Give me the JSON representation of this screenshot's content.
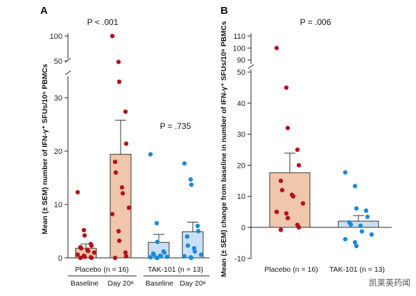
{
  "colors": {
    "placebo_bar": "#f0c6ad",
    "tak_bar": "#c9e0f6",
    "placebo_dot": "#b5121b",
    "tak_dot": "#1c8ad8"
  },
  "watermark": "凯莱英药闻",
  "chart_data": [
    {
      "panel": "A",
      "type": "bar",
      "ylabel": "Mean (± SEM) number of IFN-γ⁺ SFUs/10⁶ PBMCs",
      "ylim": [
        0,
        100
      ],
      "axis_break": [
        37,
        47
      ],
      "yticks": [
        0,
        10,
        20,
        30,
        50,
        100
      ],
      "groups": [
        {
          "name": "Placebo (n = 16)",
          "subcategories": [
            "Baseline",
            "Day 20ᵃ"
          ]
        },
        {
          "name": "TAK-101 (n = 13)",
          "subcategories": [
            "Baseline",
            "Day 20ᵃ"
          ]
        }
      ],
      "series": [
        {
          "name": "Placebo Baseline",
          "mean": 1.8,
          "sem": 0.8,
          "points": [
            12.3,
            5.2,
            4.2,
            2.6,
            2.3,
            2.0,
            1.8,
            1.5,
            1.3,
            1.0,
            0.6,
            0.4,
            0.2,
            0.1,
            0.0,
            0.0
          ]
        },
        {
          "name": "Placebo Day 20",
          "mean": 19.4,
          "sem": 6.4,
          "points": [
            100,
            48,
            33,
            27.4,
            21.4,
            18.0,
            16.0,
            13.2,
            12.1,
            9.4,
            8.2,
            5.0,
            3.2,
            1.0,
            0.3,
            0.0
          ]
        },
        {
          "name": "TAK-101 Baseline",
          "mean": 2.9,
          "sem": 1.5,
          "points": [
            19.4,
            6.5,
            3.0,
            1.2,
            1.0,
            0.8,
            0.6,
            0.4,
            0.3,
            0.2,
            0.1,
            0.0,
            0.0
          ]
        },
        {
          "name": "TAK-101 Day 20",
          "mean": 4.9,
          "sem": 1.8,
          "points": [
            17.7,
            14.7,
            13.7,
            6.0,
            5.0,
            4.0,
            2.3,
            1.8,
            1.2,
            0.6,
            0.3,
            0.1,
            0.0
          ]
        }
      ],
      "annotations": [
        "P < .001",
        "P = .735"
      ]
    },
    {
      "panel": "B",
      "type": "bar",
      "ylabel": "Mean (± SEM) change from baseline in number of IFN-γ⁺ SFUs/10⁶ PBMCs",
      "ylim": [
        -10,
        110
      ],
      "axis_break": [
        52,
        88
      ],
      "yticks": [
        -10,
        0,
        10,
        20,
        30,
        40,
        50,
        90,
        100,
        110
      ],
      "categories": [
        "Placebo (n = 16)",
        "TAK-101 (n = 13)"
      ],
      "series": [
        {
          "name": "Placebo",
          "mean": 17.6,
          "sem": 6.3,
          "points": [
            100,
            45,
            32,
            25,
            20,
            15,
            12,
            10.5,
            10,
            7.7,
            5,
            4.5,
            3,
            0.8,
            0,
            -0.8
          ]
        },
        {
          "name": "TAK-101",
          "mean": 2.0,
          "sem": 1.8,
          "points": [
            17.7,
            13.3,
            6.1,
            5.4,
            3.4,
            1.6,
            0.9,
            0.5,
            -1.3,
            -2.3,
            -3.8,
            -4.8,
            -6
          ]
        }
      ],
      "annotations": [
        "P = .006"
      ]
    }
  ]
}
